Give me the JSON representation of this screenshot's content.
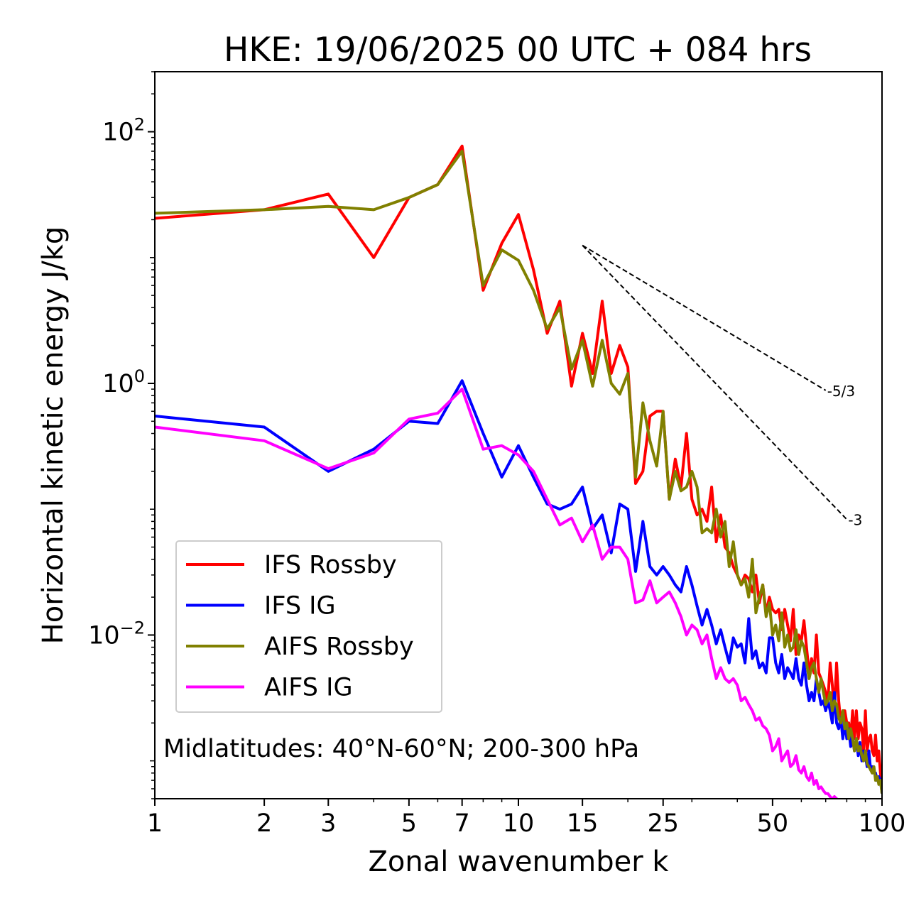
{
  "chart_data": {
    "type": "line",
    "title": "HKE: 19/06/2025 00 UTC + 084 hrs",
    "xlabel": "Zonal wavenumber k",
    "ylabel": "Horizontal kinetic energy J/kg",
    "xscale": "log",
    "yscale": "log",
    "xlim": [
      1,
      100
    ],
    "ylim": [
      0.0005,
      300
    ],
    "xticks": [
      1,
      2,
      3,
      5,
      7,
      10,
      15,
      25,
      50,
      100
    ],
    "xtick_labels": [
      "1",
      "2",
      "3",
      "5",
      "7",
      "10",
      "15",
      "25",
      "50",
      "100"
    ],
    "yticks": [
      0.01,
      1,
      100
    ],
    "ytick_labels": [
      "10^-2",
      "10^0",
      "10^2"
    ],
    "grid": false,
    "legend_position": "lower-left",
    "annotation": "Midlatitudes: 40°N-60°N; 200-300 hPa",
    "reference_lines": [
      {
        "label": "-5/3",
        "x": [
          15,
          70
        ],
        "y": [
          12.5,
          0.88
        ]
      },
      {
        "label": "-3",
        "x": [
          15,
          80
        ],
        "y": [
          12.5,
          0.083
        ]
      }
    ],
    "series": [
      {
        "name": "IFS Rossby",
        "color": "#ff0000",
        "x": [
          1,
          2,
          3,
          4,
          5,
          6,
          7,
          8,
          9,
          10,
          11,
          12,
          13,
          14,
          15,
          16,
          17,
          18,
          19,
          20,
          21,
          22,
          23,
          24,
          25,
          26,
          27,
          28,
          29,
          30,
          31,
          32,
          33,
          34,
          35,
          36,
          37,
          38,
          39,
          40,
          41,
          42,
          43,
          44,
          45,
          46,
          47,
          48,
          49,
          50,
          51,
          52,
          53,
          54,
          55,
          56,
          57,
          58,
          59,
          60,
          61,
          62,
          63,
          64,
          65,
          66,
          67,
          68,
          69,
          70,
          71,
          72,
          73,
          74,
          75,
          76,
          77,
          78,
          79,
          80,
          81,
          82,
          83,
          84,
          85,
          86,
          87,
          88,
          89,
          90,
          91,
          92,
          93,
          94,
          95,
          96,
          97,
          98,
          99,
          100
        ],
        "y": [
          20.5,
          24.0,
          32.0,
          10.0,
          30.0,
          38.0,
          77.0,
          5.5,
          13.0,
          22.0,
          8.0,
          2.5,
          4.5,
          0.95,
          2.5,
          1.2,
          4.5,
          1.2,
          2.0,
          1.35,
          0.16,
          0.2,
          0.55,
          0.6,
          0.6,
          0.12,
          0.25,
          0.15,
          0.4,
          0.12,
          0.09,
          0.1,
          0.08,
          0.15,
          0.055,
          0.09,
          0.05,
          0.045,
          0.035,
          0.03,
          0.025,
          0.03,
          0.028,
          0.022,
          0.03,
          0.018,
          0.025,
          0.015,
          0.02,
          0.016,
          0.015,
          0.016,
          0.011,
          0.016,
          0.012,
          0.009,
          0.016,
          0.007,
          0.01,
          0.009,
          0.013,
          0.008,
          0.005,
          0.0065,
          0.005,
          0.01,
          0.005,
          0.0045,
          0.004,
          0.0035,
          0.003,
          0.006,
          0.004,
          0.0025,
          0.006,
          0.003,
          0.002,
          0.0025,
          0.0025,
          0.002,
          0.002,
          0.0015,
          0.0025,
          0.0015,
          0.0025,
          0.0015,
          0.002,
          0.0018,
          0.0012,
          0.0025,
          0.0012,
          0.0015,
          0.0016,
          0.0012,
          0.0011,
          0.0016,
          0.001,
          0.0012,
          0.0008,
          0.0006
        ]
      },
      {
        "name": "IFS IG",
        "color": "#0000ff",
        "x": [
          1,
          2,
          3,
          4,
          5,
          6,
          7,
          8,
          9,
          10,
          11,
          12,
          13,
          14,
          15,
          16,
          17,
          18,
          19,
          20,
          21,
          22,
          23,
          24,
          25,
          26,
          27,
          28,
          29,
          30,
          31,
          32,
          33,
          34,
          35,
          36,
          37,
          38,
          39,
          40,
          41,
          42,
          43,
          44,
          45,
          46,
          47,
          48,
          49,
          50,
          51,
          52,
          53,
          54,
          55,
          56,
          57,
          58,
          59,
          60,
          61,
          62,
          63,
          64,
          65,
          66,
          67,
          68,
          69,
          70,
          71,
          72,
          73,
          74,
          75,
          76,
          77,
          78,
          79,
          80,
          81,
          82,
          83,
          84,
          85,
          86,
          87,
          88,
          89,
          90,
          91,
          92,
          93,
          94,
          95,
          96,
          97,
          98,
          99,
          100
        ],
        "y": [
          0.55,
          0.45,
          0.2,
          0.3,
          0.5,
          0.48,
          1.05,
          0.4,
          0.18,
          0.32,
          0.18,
          0.11,
          0.1,
          0.11,
          0.15,
          0.07,
          0.09,
          0.045,
          0.11,
          0.1,
          0.032,
          0.08,
          0.035,
          0.03,
          0.035,
          0.03,
          0.025,
          0.022,
          0.035,
          0.025,
          0.017,
          0.012,
          0.016,
          0.012,
          0.0085,
          0.011,
          0.008,
          0.006,
          0.0095,
          0.008,
          0.0085,
          0.006,
          0.0135,
          0.0065,
          0.0075,
          0.0055,
          0.006,
          0.005,
          0.0095,
          0.0095,
          0.006,
          0.005,
          0.007,
          0.0045,
          0.0055,
          0.005,
          0.0045,
          0.0065,
          0.0045,
          0.004,
          0.006,
          0.004,
          0.003,
          0.0035,
          0.003,
          0.0045,
          0.0035,
          0.0028,
          0.003,
          0.0025,
          0.003,
          0.0025,
          0.002,
          0.0035,
          0.002,
          0.0018,
          0.0022,
          0.0015,
          0.002,
          0.0015,
          0.0018,
          0.0013,
          0.0015,
          0.0012,
          0.0015,
          0.0011,
          0.0014,
          0.001,
          0.0012,
          0.0011,
          0.0009,
          0.0012,
          0.00085,
          0.0009,
          0.0008,
          0.0008,
          0.0007,
          0.00075,
          0.0007,
          0.00055
        ]
      },
      {
        "name": "AIFS Rossby",
        "color": "#808000",
        "x": [
          1,
          2,
          3,
          4,
          5,
          6,
          7,
          8,
          9,
          10,
          11,
          12,
          13,
          14,
          15,
          16,
          17,
          18,
          19,
          20,
          21,
          22,
          23,
          24,
          25,
          26,
          27,
          28,
          29,
          30,
          31,
          32,
          33,
          34,
          35,
          36,
          37,
          38,
          39,
          40,
          41,
          42,
          43,
          44,
          45,
          46,
          47,
          48,
          49,
          50,
          51,
          52,
          53,
          54,
          55,
          56,
          57,
          58,
          59,
          60,
          61,
          62,
          63,
          64,
          65,
          66,
          67,
          68,
          69,
          70,
          71,
          72,
          73,
          74,
          75,
          76,
          77,
          78,
          79,
          80,
          81,
          82,
          83,
          84,
          85,
          86,
          87,
          88,
          89,
          90,
          91,
          92,
          93,
          94,
          95,
          96,
          97,
          98,
          99,
          100
        ],
        "y": [
          22.5,
          24.0,
          25.5,
          24.0,
          30.0,
          38.0,
          70.0,
          6.0,
          11.5,
          9.5,
          5.5,
          2.7,
          4.0,
          1.3,
          2.2,
          0.95,
          2.2,
          1.0,
          0.82,
          1.2,
          0.18,
          0.7,
          0.35,
          0.22,
          0.6,
          0.12,
          0.2,
          0.14,
          0.15,
          0.2,
          0.15,
          0.065,
          0.07,
          0.065,
          0.1,
          0.06,
          0.08,
          0.035,
          0.055,
          0.03,
          0.025,
          0.028,
          0.02,
          0.04,
          0.015,
          0.02,
          0.025,
          0.014,
          0.018,
          0.01,
          0.012,
          0.009,
          0.015,
          0.008,
          0.01,
          0.0075,
          0.008,
          0.011,
          0.007,
          0.009,
          0.008,
          0.006,
          0.0045,
          0.0055,
          0.006,
          0.0045,
          0.0035,
          0.0045,
          0.0035,
          0.0028,
          0.003,
          0.0035,
          0.0025,
          0.003,
          0.0028,
          0.0022,
          0.002,
          0.0025,
          0.0018,
          0.002,
          0.0015,
          0.0018,
          0.0015,
          0.0012,
          0.0015,
          0.0012,
          0.0013,
          0.0011,
          0.001,
          0.0012,
          0.00095,
          0.0009,
          0.00085,
          0.0008,
          0.0009,
          0.0007,
          0.00075,
          0.00065,
          0.0007,
          0.00055
        ]
      },
      {
        "name": "AIFS IG",
        "color": "#ff00ff",
        "x": [
          1,
          2,
          3,
          4,
          5,
          6,
          7,
          8,
          9,
          10,
          11,
          12,
          13,
          14,
          15,
          16,
          17,
          18,
          19,
          20,
          21,
          22,
          23,
          24,
          25,
          26,
          27,
          28,
          29,
          30,
          31,
          32,
          33,
          34,
          35,
          36,
          37,
          38,
          39,
          40,
          41,
          42,
          43,
          44,
          45,
          46,
          47,
          48,
          49,
          50,
          51,
          52,
          53,
          54,
          55,
          56,
          57,
          58,
          59,
          60,
          61,
          62,
          63,
          64,
          65,
          66,
          67,
          68,
          69,
          70,
          71,
          72,
          73,
          74,
          75,
          76,
          77,
          78,
          79,
          80
        ],
        "y": [
          0.45,
          0.35,
          0.21,
          0.28,
          0.52,
          0.58,
          0.9,
          0.3,
          0.32,
          0.27,
          0.2,
          0.12,
          0.075,
          0.085,
          0.055,
          0.075,
          0.04,
          0.05,
          0.05,
          0.04,
          0.018,
          0.019,
          0.027,
          0.018,
          0.02,
          0.022,
          0.018,
          0.014,
          0.01,
          0.012,
          0.011,
          0.0085,
          0.01,
          0.0065,
          0.0045,
          0.0055,
          0.0045,
          0.0042,
          0.0045,
          0.004,
          0.003,
          0.0032,
          0.0028,
          0.0025,
          0.0021,
          0.0022,
          0.0019,
          0.0018,
          0.0016,
          0.0012,
          0.0013,
          0.0015,
          0.001,
          0.0011,
          0.0012,
          0.0009,
          0.00095,
          0.0011,
          0.00085,
          0.0008,
          0.0009,
          0.00075,
          0.0007,
          0.0008,
          0.00065,
          0.0007,
          0.0006,
          0.00062,
          0.00058,
          0.00055,
          0.00055,
          0.00052,
          0.0005,
          0.00052,
          0.0005,
          0.00049,
          0.00049,
          0.00048,
          0.00047,
          0.00046
        ]
      }
    ]
  }
}
